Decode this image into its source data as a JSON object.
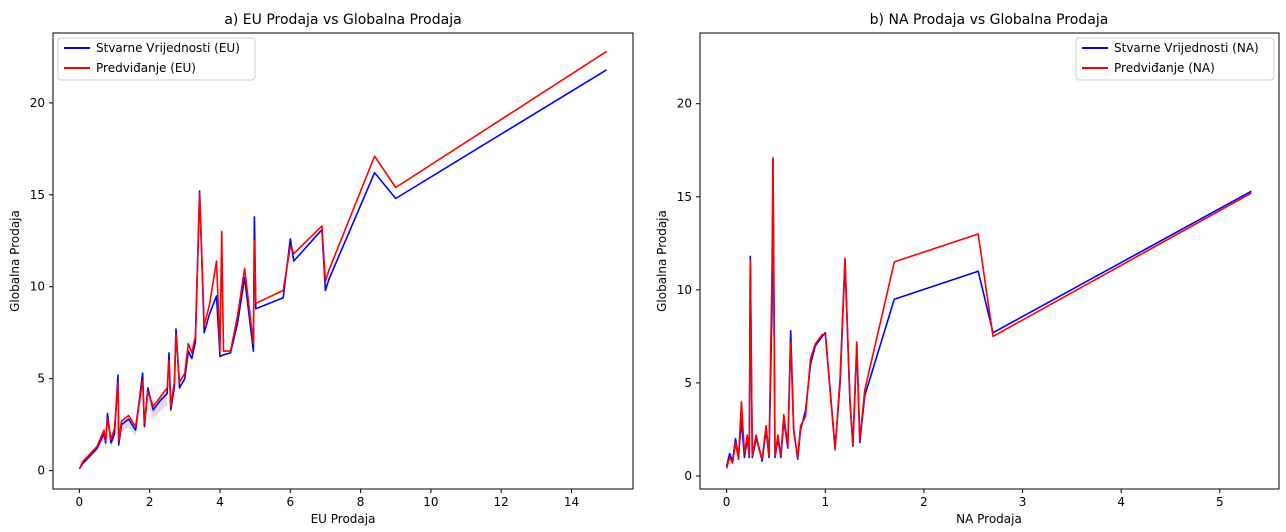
{
  "chart_data": [
    {
      "type": "line",
      "title": "a) EU Prodaja vs Globalna Prodaja",
      "xlabel": "EU Prodaja",
      "ylabel": "Globalna Prodaja",
      "xlim": [
        -0.75,
        15.75
      ],
      "ylim": [
        -1.0,
        23.8
      ],
      "xticks": [
        0,
        2,
        4,
        6,
        8,
        10,
        12,
        14
      ],
      "yticks": [
        0,
        5,
        10,
        15,
        20
      ],
      "grid": false,
      "legend_position": "top-left",
      "series": [
        {
          "name": "Stvarne Vrijednosti (EU)",
          "color": "#0000ff",
          "x": [
            0.0,
            0.1,
            0.3,
            0.5,
            0.7,
            0.75,
            0.8,
            0.9,
            1.0,
            1.1,
            1.12,
            1.2,
            1.4,
            1.6,
            1.8,
            1.85,
            1.95,
            2.1,
            2.3,
            2.5,
            2.55,
            2.6,
            2.7,
            2.75,
            2.85,
            3.0,
            3.1,
            3.2,
            3.3,
            3.42,
            3.55,
            3.7,
            3.9,
            4.0,
            4.1,
            4.3,
            4.5,
            4.7,
            4.95,
            4.98,
            5.02,
            5.8,
            6.0,
            6.1,
            6.9,
            7.0,
            7.1,
            8.4,
            9.0,
            15.0
          ],
          "y": [
            0.1,
            0.4,
            0.8,
            1.2,
            2.0,
            1.5,
            3.1,
            1.5,
            2.0,
            5.2,
            1.4,
            2.5,
            2.8,
            2.2,
            5.3,
            2.4,
            4.5,
            3.3,
            3.8,
            4.2,
            6.4,
            3.3,
            4.5,
            7.7,
            4.5,
            5.0,
            6.5,
            6.1,
            7.0,
            15.2,
            7.5,
            8.5,
            9.5,
            6.2,
            6.3,
            6.4,
            8.0,
            10.5,
            6.5,
            13.8,
            8.8,
            9.4,
            12.6,
            11.4,
            13.1,
            9.8,
            10.4,
            16.2,
            14.8,
            21.8
          ]
        },
        {
          "name": "Predviđanje (EU)",
          "color": "#ff0000",
          "x": [
            0.0,
            0.1,
            0.3,
            0.5,
            0.7,
            0.75,
            0.8,
            0.9,
            1.0,
            1.1,
            1.12,
            1.2,
            1.4,
            1.6,
            1.8,
            1.85,
            1.95,
            2.1,
            2.3,
            2.5,
            2.55,
            2.6,
            2.7,
            2.75,
            2.85,
            3.0,
            3.1,
            3.2,
            3.3,
            3.42,
            3.55,
            3.7,
            3.9,
            4.0,
            4.05,
            4.1,
            4.3,
            4.5,
            4.7,
            4.95,
            4.98,
            5.02,
            5.8,
            6.0,
            6.1,
            6.9,
            7.0,
            7.1,
            8.4,
            9.0,
            15.0
          ],
          "y": [
            0.1,
            0.5,
            0.9,
            1.3,
            2.2,
            1.6,
            2.8,
            1.7,
            2.3,
            4.8,
            1.6,
            2.7,
            3.0,
            2.4,
            4.9,
            2.6,
            4.3,
            3.5,
            4.0,
            4.5,
            6.0,
            3.5,
            4.8,
            7.4,
            4.8,
            5.3,
            6.9,
            6.4,
            7.3,
            15.1,
            7.9,
            9.0,
            11.4,
            6.5,
            13.0,
            6.5,
            6.5,
            8.4,
            11.0,
            6.9,
            12.5,
            9.1,
            9.8,
            12.2,
            11.8,
            13.3,
            10.3,
            10.9,
            17.1,
            15.4,
            22.8
          ]
        }
      ]
    },
    {
      "type": "line",
      "title": "b) NA Prodaja vs Globalna Prodaja",
      "xlabel": "NA Prodaja",
      "ylabel": "Globalna Prodaja",
      "xlim": [
        -0.27,
        5.6
      ],
      "ylim": [
        -0.7,
        23.8
      ],
      "xticks": [
        0,
        1,
        2,
        3,
        4,
        5
      ],
      "yticks": [
        0,
        5,
        10,
        15,
        20
      ],
      "grid": false,
      "legend_position": "top-right",
      "series": [
        {
          "name": "Stvarne Vrijednosti (NA)",
          "color": "#0000ff",
          "x": [
            0.0,
            0.03,
            0.06,
            0.09,
            0.12,
            0.15,
            0.18,
            0.21,
            0.23,
            0.24,
            0.26,
            0.3,
            0.33,
            0.36,
            0.4,
            0.43,
            0.46,
            0.47,
            0.49,
            0.52,
            0.55,
            0.58,
            0.62,
            0.65,
            0.68,
            0.72,
            0.75,
            0.8,
            0.85,
            0.9,
            0.97,
            1.0,
            1.1,
            1.15,
            1.2,
            1.25,
            1.28,
            1.32,
            1.35,
            1.4,
            1.7,
            2.55,
            2.7,
            5.32
          ],
          "y": [
            0.5,
            1.2,
            0.8,
            2.0,
            1.0,
            3.0,
            1.0,
            2.0,
            1.0,
            11.8,
            1.0,
            2.0,
            1.5,
            0.8,
            2.5,
            1.0,
            9.0,
            17.0,
            1.0,
            2.0,
            1.0,
            3.0,
            1.5,
            7.8,
            2.5,
            0.9,
            2.5,
            3.5,
            6.0,
            7.0,
            7.5,
            7.7,
            1.5,
            5.0,
            11.5,
            4.0,
            1.6,
            7.0,
            1.8,
            4.3,
            9.5,
            11.0,
            7.7,
            15.3
          ]
        },
        {
          "name": "Predviđanje (NA)",
          "color": "#ff0000",
          "x": [
            0.0,
            0.03,
            0.06,
            0.09,
            0.12,
            0.15,
            0.18,
            0.21,
            0.23,
            0.24,
            0.26,
            0.3,
            0.33,
            0.36,
            0.4,
            0.43,
            0.46,
            0.47,
            0.49,
            0.52,
            0.55,
            0.58,
            0.62,
            0.65,
            0.68,
            0.72,
            0.75,
            0.8,
            0.85,
            0.9,
            0.97,
            1.0,
            1.1,
            1.15,
            1.2,
            1.25,
            1.28,
            1.32,
            1.35,
            1.4,
            1.7,
            2.55,
            2.7,
            5.32
          ],
          "y": [
            0.4,
            1.0,
            0.7,
            1.8,
            0.9,
            4.0,
            1.2,
            2.2,
            1.1,
            11.6,
            1.1,
            2.2,
            1.4,
            0.9,
            2.7,
            1.1,
            11.0,
            17.1,
            1.1,
            2.2,
            1.1,
            3.3,
            1.6,
            7.2,
            2.4,
            1.0,
            2.7,
            3.2,
            6.3,
            7.1,
            7.6,
            7.6,
            1.4,
            5.3,
            11.7,
            4.2,
            1.7,
            7.2,
            1.9,
            4.6,
            11.5,
            13.0,
            7.5,
            15.2
          ]
        }
      ]
    }
  ]
}
